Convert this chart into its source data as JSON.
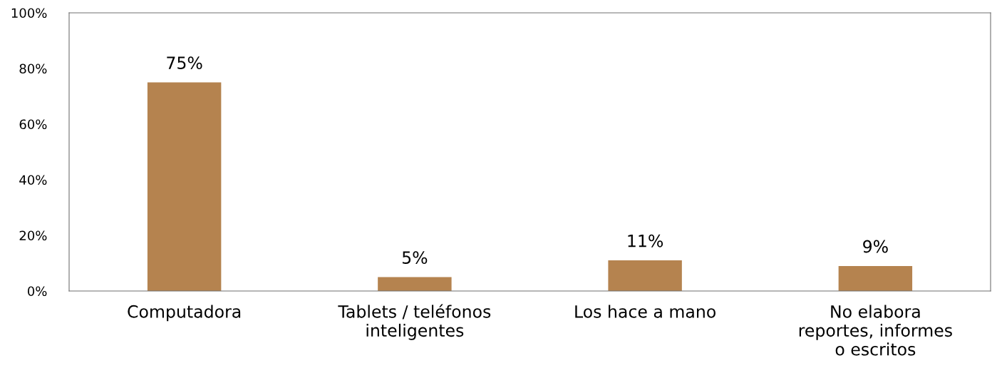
{
  "chart_data": {
    "type": "bar",
    "categories": [
      "Computadora",
      "Tablets / teléfonos\ninteligentes",
      "Los hace a mano",
      "No elabora\nreportes, informes\no escritos"
    ],
    "values": [
      75,
      5,
      11,
      9
    ],
    "color": "#b5834f",
    "value_labels": [
      "75%",
      "5%",
      "11%",
      "9%"
    ],
    "ylim": [
      0,
      100
    ],
    "yticks": [
      {
        "value": 0,
        "label": "0%"
      },
      {
        "value": 20,
        "label": "20%"
      },
      {
        "value": 40,
        "label": "40%"
      },
      {
        "value": 60,
        "label": "60%"
      },
      {
        "value": 80,
        "label": "80%"
      },
      {
        "value": 100,
        "label": "100%"
      }
    ],
    "grid": false
  }
}
